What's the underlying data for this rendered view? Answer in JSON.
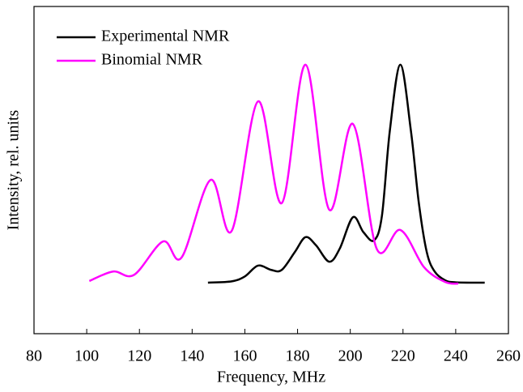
{
  "chart_data": {
    "type": "line",
    "xlabel": "Frequency, MHz",
    "ylabel": "Intensity, rel. units",
    "xlim": [
      80,
      260
    ],
    "xticks": [
      80,
      100,
      120,
      140,
      160,
      180,
      200,
      220,
      240,
      260
    ],
    "ylim": [
      0,
      100
    ],
    "legend": "upper left",
    "series": [
      {
        "name": "Experimental NMR",
        "color": "#000000",
        "x": [
          146,
          155,
          160,
          165,
          170,
          174,
          179,
          183,
          187,
          192,
          196,
          201,
          205,
          209,
          212,
          215,
          219,
          223,
          226,
          229,
          232,
          236,
          240,
          251
        ],
        "values": [
          15.6,
          16,
          17.5,
          20.8,
          19.5,
          19.5,
          25,
          29.5,
          27,
          22,
          26,
          35.6,
          31,
          28.5,
          36,
          62,
          82.2,
          62,
          40,
          25,
          19,
          16.3,
          15.7,
          15.6
        ]
      },
      {
        "name": "Binomial NMR",
        "color": "#ff00ff",
        "x": [
          101,
          110,
          118,
          129,
          136,
          147,
          155,
          165,
          174,
          183,
          192,
          201,
          210,
          219,
          228,
          236,
          241
        ],
        "values": [
          16.1,
          19,
          18,
          28.2,
          23.3,
          47,
          31.4,
          71,
          39.9,
          82.2,
          37.9,
          64.1,
          26,
          31.7,
          20.3,
          15.8,
          15.3
        ]
      }
    ]
  }
}
